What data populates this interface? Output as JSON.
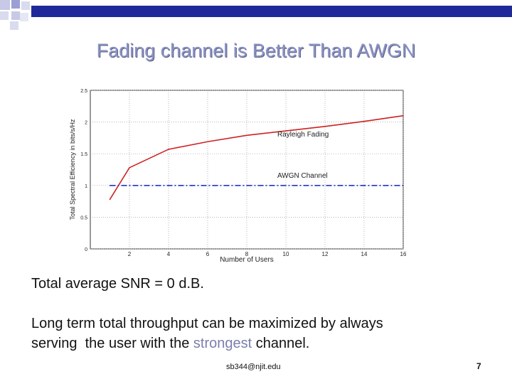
{
  "slide": {
    "title": "Fading channel is Better Than AWGN",
    "text1": "Total average SNR = 0 d.B.",
    "text2_line1": "Long term total throughput can be maximized by always",
    "text2_line2_a": "serving  the user with the ",
    "text2_line2_accent": "strongest",
    "text2_line2_b": " channel.",
    "footer": "sb344@njit.edu",
    "page_number": "7",
    "colors": {
      "title": "#8b93c6",
      "accent": "#7a7fae",
      "bar": "#1f2a9a"
    }
  },
  "chart_data": {
    "type": "line",
    "xlabel": "Number of Users",
    "ylabel": "Total Spectral Efficiency in bits/s/Hz",
    "xlim": [
      0,
      16
    ],
    "ylim": [
      0,
      2.5
    ],
    "x_ticks": [
      2,
      4,
      6,
      8,
      10,
      12,
      14,
      16
    ],
    "x_tick_labels": [
      "2",
      "4",
      "6",
      "8",
      "10",
      "12",
      "14",
      "16"
    ],
    "y_ticks": [
      0,
      0.5,
      1,
      1.5,
      2,
      2.5
    ],
    "y_tick_labels": [
      "0",
      "0.5",
      "1",
      "1.5",
      "2",
      "2.5"
    ],
    "grid": true,
    "series": [
      {
        "name": "Rayleigh Fading",
        "color": "#cc2222",
        "style": "solid",
        "x": [
          1,
          2,
          4,
          6,
          8,
          10,
          12,
          14,
          16
        ],
        "y": [
          0.78,
          1.28,
          1.57,
          1.69,
          1.79,
          1.86,
          1.93,
          2.01,
          2.1
        ]
      },
      {
        "name": "AWGN Channel",
        "color": "#2233cc",
        "style": "dashed",
        "x": [
          1,
          16
        ],
        "y": [
          1.0,
          1.0
        ]
      }
    ]
  }
}
